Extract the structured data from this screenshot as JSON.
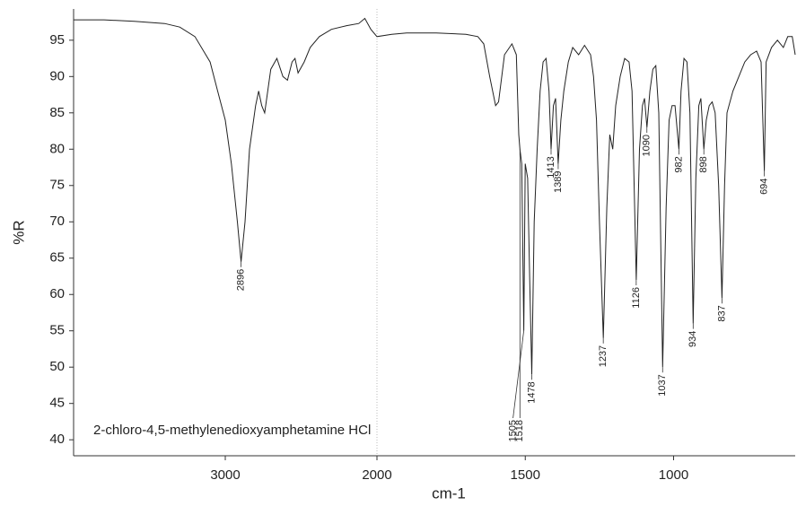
{
  "chart_data": {
    "type": "line",
    "annotation": "2-chloro-4,5-methylenedioxyamphetamine HCl",
    "x_label": "cm-1",
    "y_label": "%R",
    "x": [
      4000,
      3800,
      3600,
      3400,
      3300,
      3200,
      3100,
      3050,
      3000,
      2960,
      2920,
      2896,
      2870,
      2840,
      2800,
      2780,
      2760,
      2740,
      2700,
      2660,
      2620,
      2590,
      2560,
      2540,
      2520,
      2480,
      2440,
      2380,
      2300,
      2200,
      2120,
      2080,
      2040,
      2000,
      1950,
      1900,
      1800,
      1700,
      1660,
      1640,
      1620,
      1600,
      1590,
      1570,
      1545,
      1530,
      1522,
      1518,
      1512,
      1505,
      1500,
      1492,
      1485,
      1478,
      1470,
      1460,
      1450,
      1440,
      1430,
      1420,
      1413,
      1405,
      1398,
      1389,
      1380,
      1370,
      1355,
      1340,
      1320,
      1300,
      1280,
      1270,
      1260,
      1250,
      1237,
      1225,
      1215,
      1205,
      1195,
      1180,
      1165,
      1150,
      1140,
      1126,
      1115,
      1105,
      1098,
      1090,
      1080,
      1070,
      1060,
      1050,
      1037,
      1025,
      1015,
      1005,
      995,
      982,
      975,
      965,
      955,
      945,
      934,
      925,
      915,
      908,
      898,
      890,
      880,
      870,
      860,
      848,
      837,
      828,
      820,
      800,
      780,
      760,
      740,
      720,
      705,
      694,
      688,
      670,
      650,
      630,
      615,
      600,
      590
    ],
    "values": [
      97.8,
      97.8,
      97.6,
      97.3,
      96.8,
      95.5,
      92,
      88,
      84,
      78,
      70,
      64.5,
      70,
      80,
      86,
      88,
      86,
      85,
      91,
      92.5,
      90,
      89.5,
      92,
      92.5,
      90.5,
      92,
      94,
      95.5,
      96.5,
      97,
      97.3,
      98,
      96.5,
      95.5,
      95.8,
      96,
      96,
      95.8,
      95.5,
      94.5,
      90,
      86,
      86.5,
      93,
      94.5,
      93,
      82,
      80,
      78,
      55,
      78,
      76,
      62,
      49,
      70,
      80,
      88,
      92,
      92.5,
      88,
      80,
      86,
      87,
      78,
      84,
      88,
      92,
      94,
      93,
      94.3,
      93,
      90,
      84,
      70,
      54,
      72,
      82,
      80,
      86,
      90,
      92.5,
      92,
      88,
      62,
      80,
      86,
      87,
      83,
      88,
      91,
      91.5,
      85,
      50,
      72,
      84,
      86,
      86,
      80,
      88,
      92.5,
      92,
      85,
      56,
      76,
      86,
      87,
      80,
      84,
      86,
      86.5,
      85,
      75,
      59.5,
      75,
      85,
      88,
      90,
      92,
      93,
      93.5,
      92,
      77,
      92,
      94,
      95,
      94,
      95.5,
      95.5,
      93
    ],
    "color": "#222222",
    "peaks": [
      2896,
      1518,
      1505,
      1478,
      1413,
      1389,
      1237,
      1126,
      1090,
      1037,
      982,
      934,
      898,
      837,
      694
    ],
    "xlim": [
      4000,
      590
    ],
    "scale_change_at": 2000,
    "xticks": [
      3000,
      2000,
      1500,
      1000
    ],
    "ylim": [
      37.8,
      99.3
    ],
    "yticks": [
      40,
      45,
      50,
      55,
      60,
      65,
      70,
      75,
      80,
      85,
      90,
      95
    ]
  }
}
